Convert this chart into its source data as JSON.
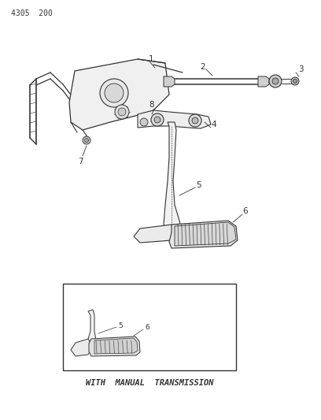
{
  "bg_color": "#ffffff",
  "line_color": "#333333",
  "header_text": "4305  200",
  "bottom_label": "WITH  MANUAL  TRANSMISSION",
  "figsize": [
    4.08,
    5.33
  ],
  "dpi": 100
}
